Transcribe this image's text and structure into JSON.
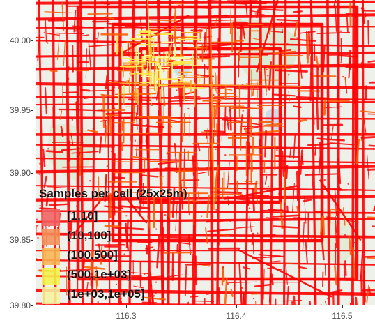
{
  "map": {
    "axes": {
      "x_ticks": [
        "116.3",
        "116.4",
        "116.5"
      ],
      "y_ticks": [
        "40.00",
        "39.95",
        "39.90",
        "39.85",
        "39.80"
      ]
    },
    "basemap": "light street map of Beijing",
    "layer_colors": {
      "roads_low": "#ff0000",
      "roads_mid": "#ff5a00",
      "roads_high": "#ffa020",
      "hotspot": "#ffe94a",
      "peak": "#ffff9a"
    }
  },
  "legend": {
    "title": "Samples per cell (25x25m)",
    "items": [
      {
        "label": "[1,10]",
        "color": "#f06060"
      },
      {
        "label": "(10,100]",
        "color": "#f4915a"
      },
      {
        "label": "(100,500]",
        "color": "#f7b552"
      },
      {
        "label": "(500,1e+03]",
        "color": "#f4f24a"
      },
      {
        "label": "(1e+03,1e+05]",
        "color": "#f5f39e"
      }
    ]
  }
}
